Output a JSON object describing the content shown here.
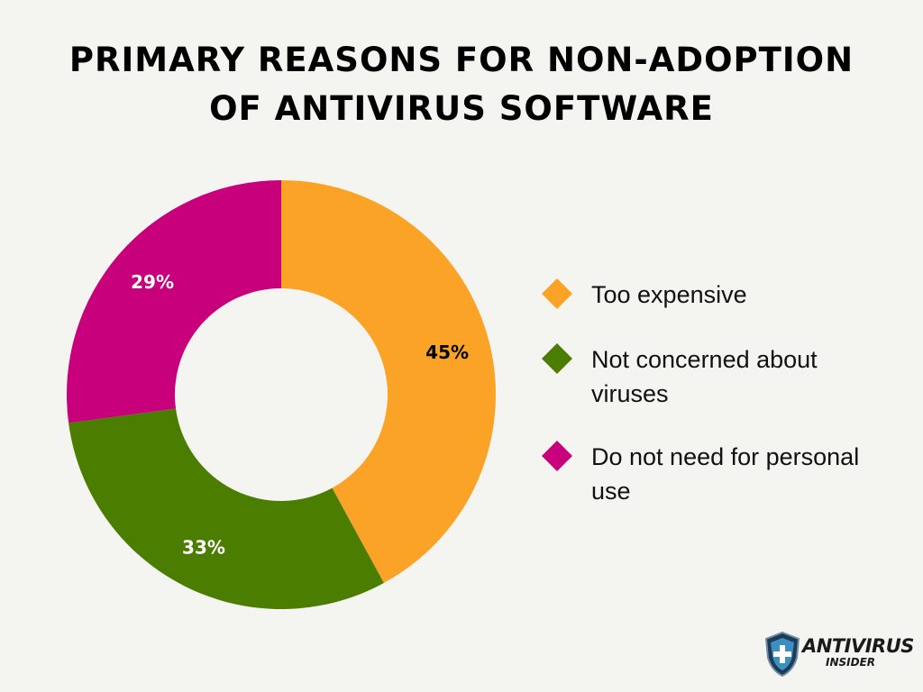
{
  "chart_data": {
    "type": "pie",
    "title_lines": [
      "PRIMARY REASONS FOR NON-ADOPTION",
      "OF ANTIVIRUS SOFTWARE"
    ],
    "categories": [
      "Too expensive",
      "Not concerned about viruses",
      "Do not need for personal use"
    ],
    "values": [
      45,
      33,
      29
    ],
    "labels": [
      "45%",
      "33%",
      "29%"
    ],
    "colors": [
      "#fba326",
      "#4a7d00",
      "#c8007b"
    ],
    "label_colors": [
      "#000000",
      "#ffffff",
      "#ffffff"
    ],
    "legend_position": "right",
    "donut": true
  },
  "logo": {
    "name": "ANTIVIRUS",
    "sub": "INSIDER"
  }
}
